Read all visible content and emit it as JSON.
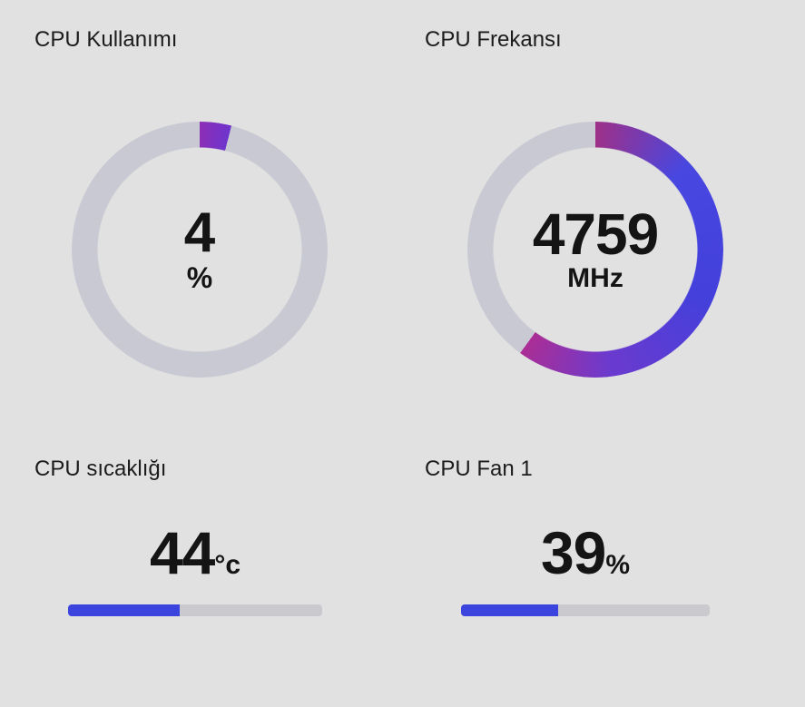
{
  "page": {
    "background_color": "#e1e1e1"
  },
  "colors": {
    "gauge_track_gray": "#c9c9d3",
    "bar_track_gray": "#c9c9ce",
    "bar_fill_blue": "#3b44dd",
    "usage_segment_purple": "#7c32c3",
    "frequency_arc_blue": "#4444dd",
    "frequency_arc_magenta": "#a42f90",
    "text_dark": "#141414"
  },
  "widgets": {
    "cpu_usage": {
      "title": "CPU Kullanımı",
      "value": "4",
      "unit": "%",
      "gauge_percent": 4
    },
    "cpu_frequency": {
      "title": "CPU Frekansı",
      "value": "4759",
      "unit": "MHz",
      "gauge_percent": 60
    },
    "cpu_temperature": {
      "title": "CPU sıcaklığı",
      "value": "44",
      "unit": "°c",
      "bar_percent": 44
    },
    "cpu_fan": {
      "title": "CPU Fan 1",
      "value": "39",
      "unit": "%",
      "bar_percent": 39
    }
  }
}
